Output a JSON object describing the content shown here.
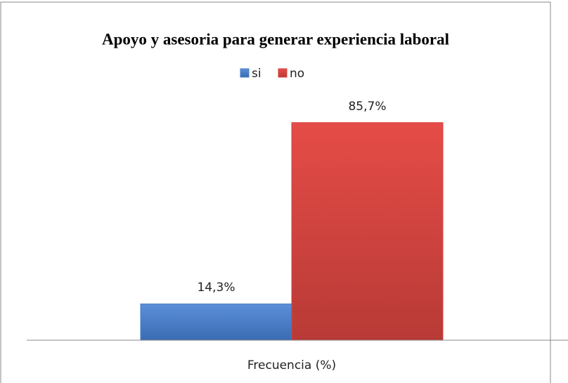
{
  "chart_data": {
    "type": "bar",
    "title": "Apoyo y asesoria para generar experiencia laboral",
    "categories": [
      "Frecuencia (%)"
    ],
    "series": [
      {
        "name": "si",
        "color": "#4a7fc8",
        "values": [
          14.3
        ],
        "value_labels": [
          "14,3%"
        ]
      },
      {
        "name": "no",
        "color": "#d9433f",
        "values": [
          85.7
        ],
        "value_labels": [
          "85,7%"
        ]
      }
    ],
    "legend": "top"
  }
}
